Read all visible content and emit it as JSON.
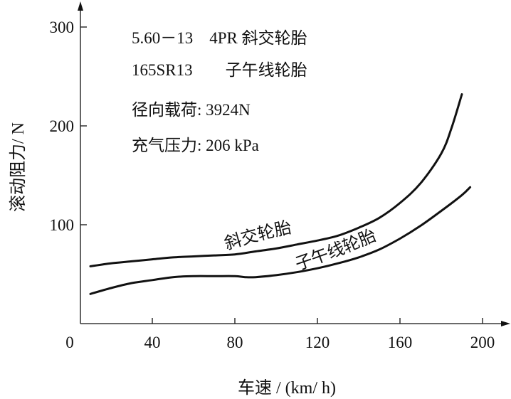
{
  "chart_data": {
    "type": "line",
    "xlabel": "车速 / (km/ h)",
    "ylabel": "滚动阻力/ N",
    "xlim": [
      0,
      205
    ],
    "ylim": [
      0,
      310
    ],
    "x_ticks": [
      0,
      40,
      80,
      120,
      160,
      200
    ],
    "y_ticks": [
      100,
      200,
      300
    ],
    "annotations": [
      "5.60－13　4PR 斜交轮胎",
      "165SR13　　子午线轮胎",
      "径向载荷: 3924N",
      "充气压力: 206 kPa"
    ],
    "series": [
      {
        "name": "斜交轮胎",
        "x": [
          10,
          20,
          30,
          40,
          50,
          60,
          70,
          80,
          90,
          100,
          110,
          120,
          130,
          140,
          150,
          160,
          170,
          180,
          185,
          190
        ],
        "y": [
          58,
          61,
          63,
          65,
          67,
          68,
          69,
          70,
          73,
          76,
          80,
          84,
          89,
          97,
          107,
          122,
          142,
          172,
          198,
          232
        ]
      },
      {
        "name": "子午线轮胎",
        "x": [
          10,
          20,
          30,
          40,
          50,
          60,
          70,
          80,
          85,
          90,
          100,
          110,
          120,
          130,
          140,
          150,
          160,
          170,
          180,
          190,
          194
        ],
        "y": [
          30,
          36,
          41,
          44,
          47,
          48,
          48,
          48,
          47,
          47,
          49,
          52,
          56,
          61,
          67,
          75,
          86,
          99,
          114,
          130,
          138
        ]
      }
    ],
    "curve_labels": [
      "斜交轮胎",
      "子午线轮胎"
    ],
    "grid": false,
    "legend": "none"
  }
}
